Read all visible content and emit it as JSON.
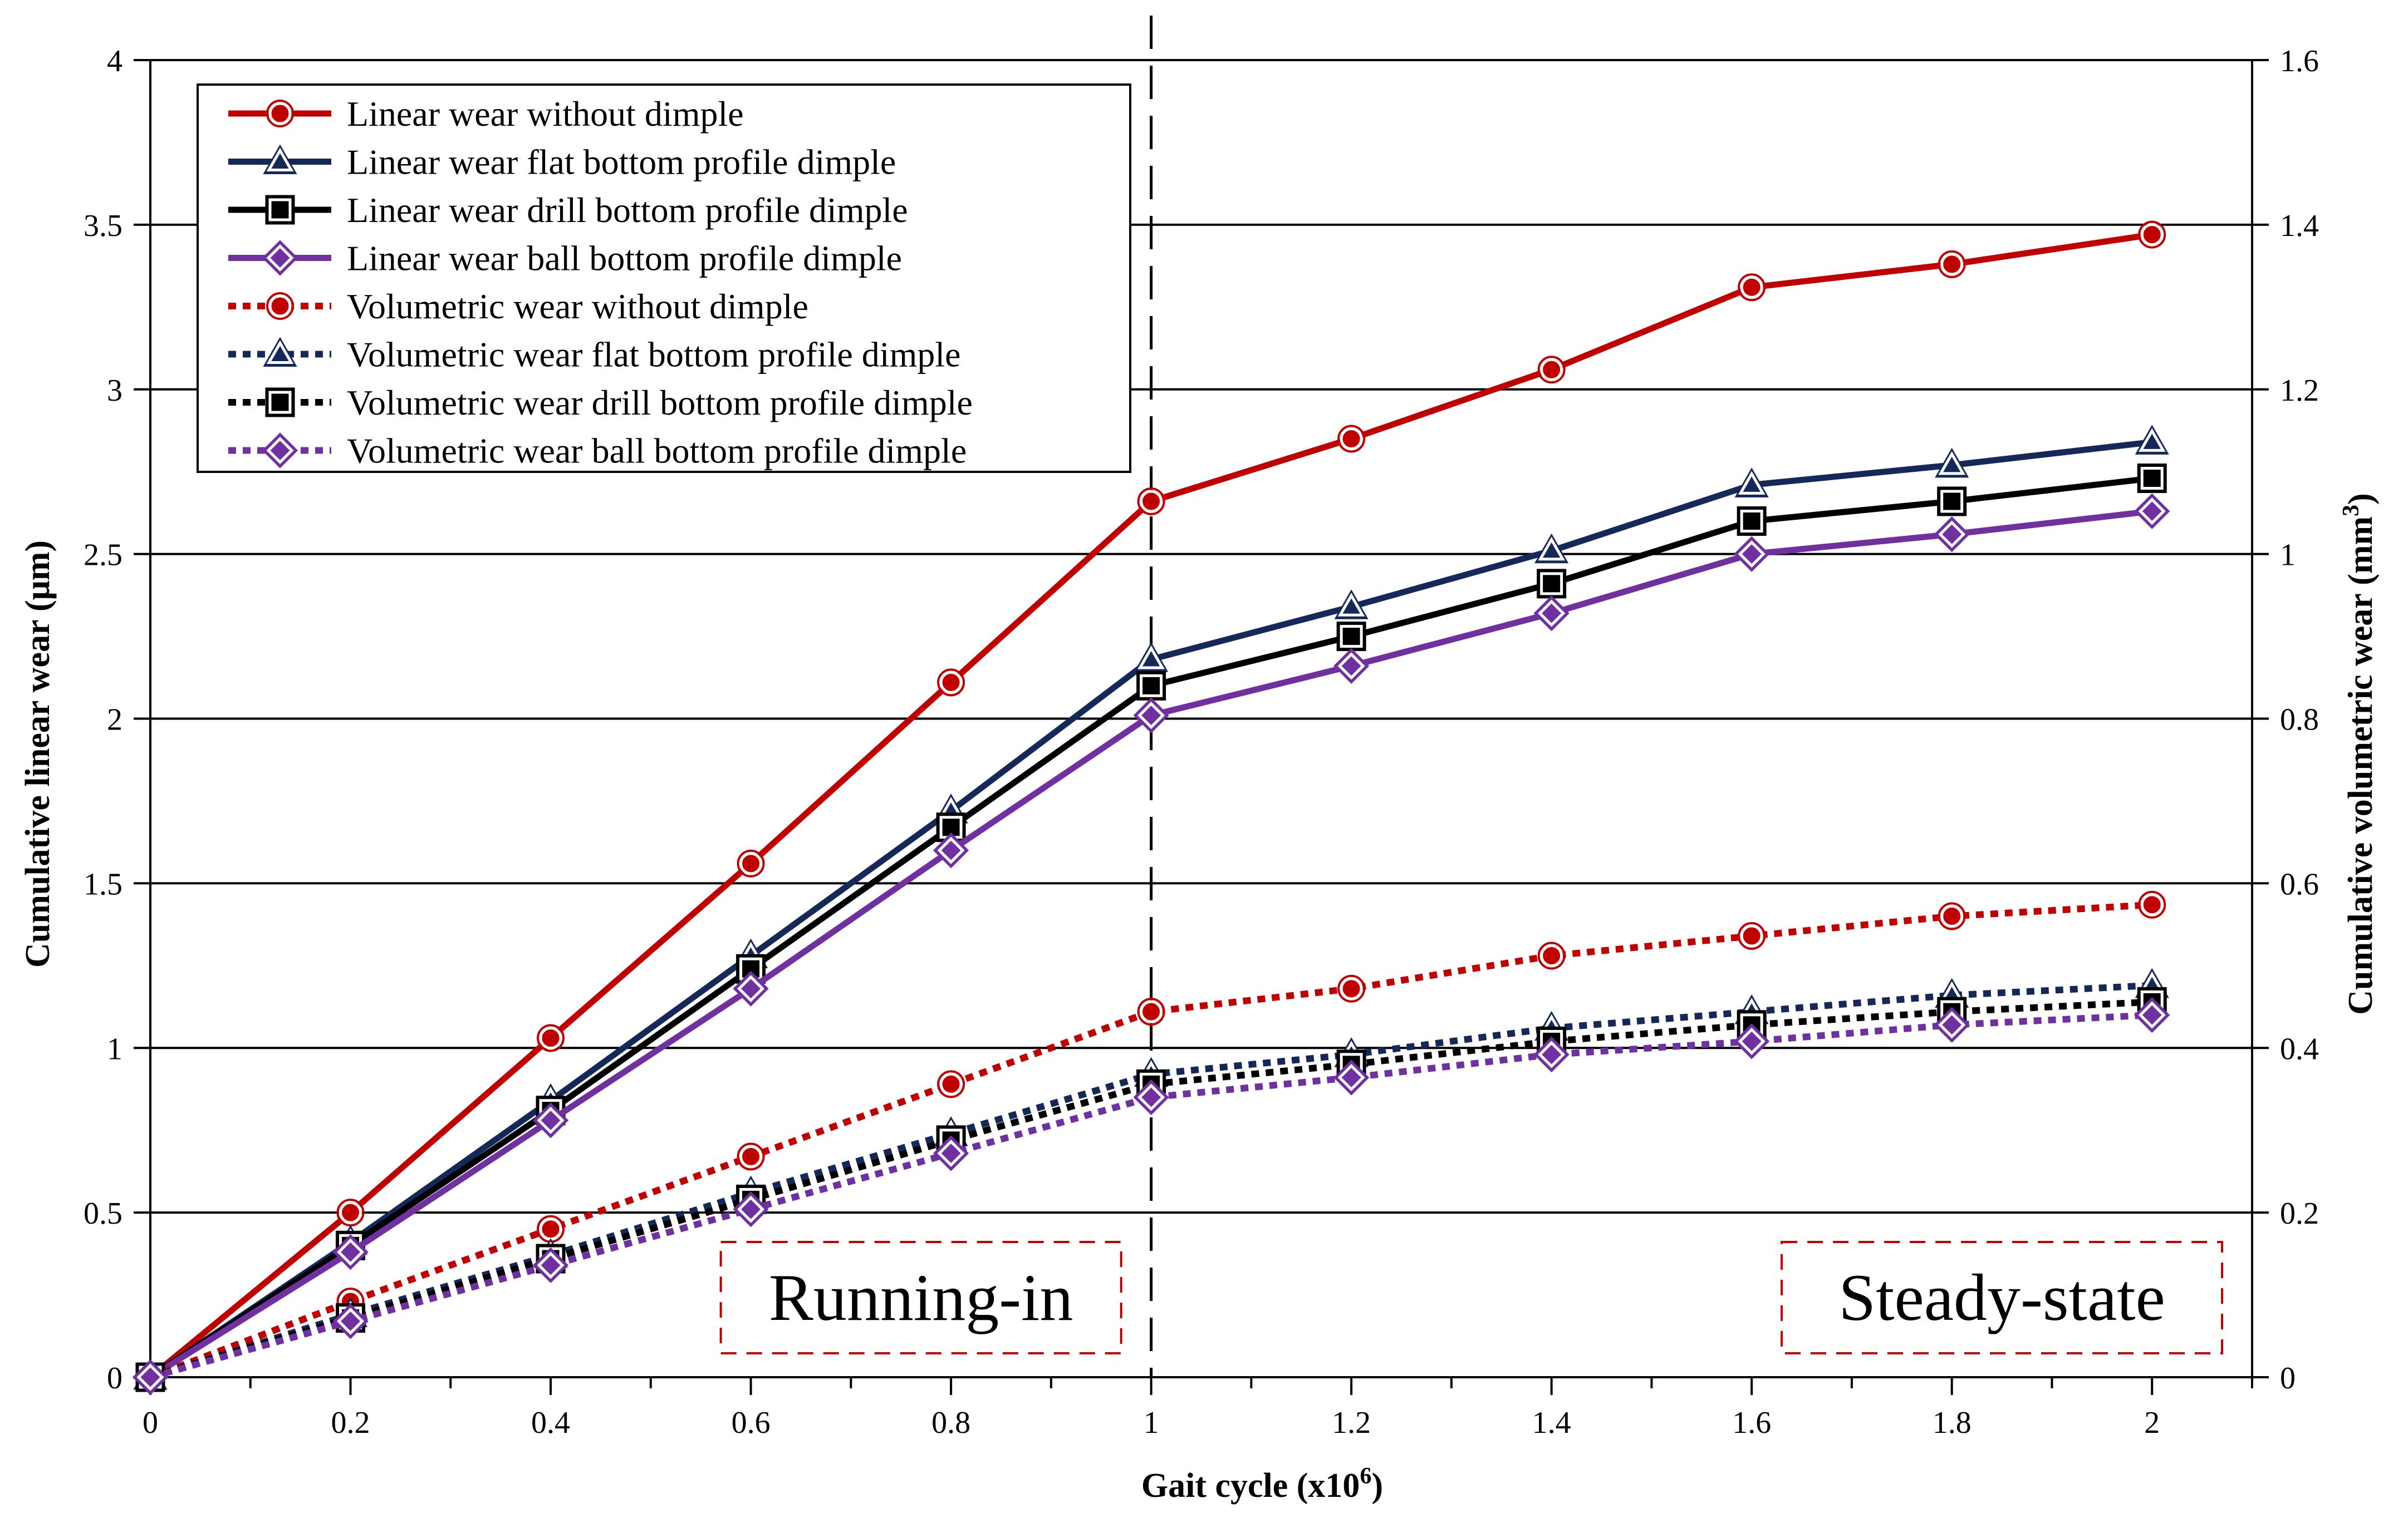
{
  "chart_data": {
    "type": "line",
    "title": "",
    "xlabel": "Gait cycle (x10",
    "xlabel_sup": "6",
    "xlabel_end": ")",
    "ylabel_left": "Cumulative linear wear (μm)",
    "ylabel_right": "Cumulative volumetric wear (mm",
    "ylabel_right_sup": "3",
    "ylabel_right_end": ")",
    "xlim": [
      0,
      2.1
    ],
    "ylim_left": [
      0,
      4
    ],
    "ylim_right": [
      0,
      1.6
    ],
    "grid": "horizontal major",
    "legend_position": "top-left",
    "x_ticks": [
      0,
      0.2,
      0.4,
      0.6,
      0.8,
      1,
      1.2,
      1.4,
      1.6,
      1.8,
      2
    ],
    "x_tick_labels": [
      "0",
      "0.2",
      "0.4",
      "0.6",
      "0.8",
      "1",
      "1.2",
      "1.4",
      "1.6",
      "1.8",
      "2"
    ],
    "y_left_ticks": [
      0,
      0.5,
      1,
      1.5,
      2,
      2.5,
      3,
      3.5,
      4
    ],
    "y_left_tick_labels": [
      "0",
      "0.5",
      "1",
      "1.5",
      "2",
      "2.5",
      "3",
      "3.5",
      "4"
    ],
    "y_right_ticks": [
      0,
      0.2,
      0.4,
      0.6,
      0.8,
      1,
      1.2,
      1.4,
      1.6
    ],
    "y_right_tick_labels": [
      "0",
      "0.2",
      "0.4",
      "0.6",
      "0.8",
      "1",
      "1.2",
      "1.4",
      "1.6"
    ],
    "x": [
      0,
      0.2,
      0.4,
      0.6,
      0.8,
      1.0,
      1.2,
      1.4,
      1.6,
      1.8,
      2.0
    ],
    "divider_x": 1.0,
    "annotations": [
      {
        "text": "Running-in",
        "x_range": [
          0.57,
          0.97
        ]
      },
      {
        "text": "Steady-state",
        "x_range": [
          1.63,
          2.07
        ]
      }
    ],
    "series": [
      {
        "name": "Linear wear without dimple",
        "axis": "left",
        "color": "#c00000",
        "marker": "circle",
        "style": "solid",
        "values": [
          0,
          0.5,
          1.03,
          1.56,
          2.11,
          2.66,
          2.85,
          3.06,
          3.31,
          3.38,
          3.47
        ]
      },
      {
        "name": "Linear wear flat bottom profile dimple",
        "axis": "left",
        "color": "#14285a",
        "marker": "triangle",
        "style": "solid",
        "values": [
          0,
          0.41,
          0.84,
          1.28,
          1.72,
          2.18,
          2.34,
          2.51,
          2.71,
          2.77,
          2.84
        ]
      },
      {
        "name": "Linear wear drill bottom profile dimple",
        "axis": "left",
        "color": "#000000",
        "marker": "square",
        "style": "solid",
        "values": [
          0,
          0.4,
          0.81,
          1.24,
          1.67,
          2.1,
          2.25,
          2.41,
          2.6,
          2.66,
          2.73
        ]
      },
      {
        "name": "Linear wear ball bottom profile dimple",
        "axis": "left",
        "color": "#7030a0",
        "marker": "diamond",
        "style": "solid",
        "values": [
          0,
          0.38,
          0.78,
          1.18,
          1.6,
          2.01,
          2.16,
          2.32,
          2.5,
          2.56,
          2.63
        ]
      },
      {
        "name": "Volumetric wear without dimple",
        "axis": "right",
        "color": "#c00000",
        "marker": "circle",
        "style": "dotted",
        "values": [
          0,
          0.092,
          0.18,
          0.268,
          0.356,
          0.444,
          0.472,
          0.512,
          0.536,
          0.56,
          0.574
        ]
      },
      {
        "name": "Volumetric wear flat bottom profile dimple",
        "axis": "right",
        "color": "#14285a",
        "marker": "triangle",
        "style": "dotted",
        "values": [
          0,
          0.076,
          0.148,
          0.224,
          0.296,
          0.368,
          0.392,
          0.424,
          0.444,
          0.464,
          0.476
        ]
      },
      {
        "name": "Volumetric wear drill bottom profile dimple",
        "axis": "right",
        "color": "#000000",
        "marker": "square",
        "style": "dotted",
        "values": [
          0,
          0.072,
          0.144,
          0.216,
          0.288,
          0.356,
          0.38,
          0.408,
          0.428,
          0.444,
          0.456
        ]
      },
      {
        "name": "Volumetric wear ball bottom profile dimple",
        "axis": "right",
        "color": "#7030a0",
        "marker": "diamond",
        "style": "dotted",
        "values": [
          0,
          0.068,
          0.136,
          0.204,
          0.272,
          0.34,
          0.364,
          0.392,
          0.408,
          0.428,
          0.44
        ]
      }
    ]
  }
}
